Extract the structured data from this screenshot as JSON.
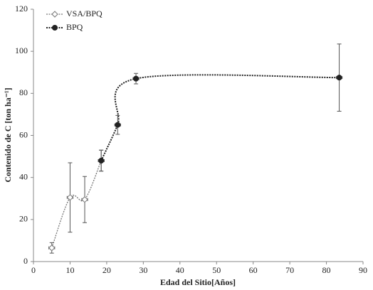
{
  "chart_data": {
    "type": "scatter",
    "xlabel": "Edad del Sitio[Años]",
    "ylabel": "Contenido de C [ton ha⁻¹]",
    "xlim": [
      0,
      90
    ],
    "xticks": [
      0,
      10,
      20,
      30,
      40,
      50,
      60,
      70,
      80,
      90
    ],
    "ylim": [
      0,
      120
    ],
    "yticks": [
      0,
      20,
      40,
      60,
      80,
      100,
      120
    ],
    "legend": "upper left",
    "series": [
      {
        "name": "VSA/BPQ",
        "color": "#777777",
        "marker": "diamond",
        "x": [
          5,
          10,
          14,
          18.5
        ],
        "values": [
          6.5,
          30.5,
          29.5,
          48
        ],
        "errors": [
          2.5,
          16.5,
          11,
          5
        ],
        "xerr": [
          0.8,
          0.8,
          0.8,
          0.8
        ]
      },
      {
        "name": "BPQ",
        "color": "#222222",
        "marker": "circle",
        "x": [
          18.5,
          23,
          28,
          83.5
        ],
        "values": [
          48,
          65,
          87,
          87.5
        ],
        "errors": [
          5,
          4.5,
          2.5,
          16
        ],
        "xerr": [
          0.8,
          0.8,
          0.8,
          0.8
        ]
      }
    ]
  }
}
